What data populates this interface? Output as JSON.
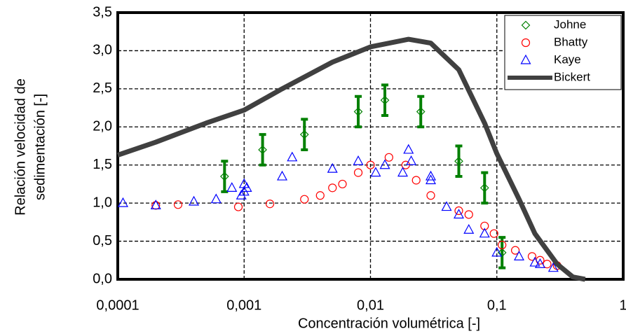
{
  "chart_data": {
    "type": "scatter",
    "xlabel": "Concentración volumétrica [-]",
    "ylabel": [
      "Relación velocidad de",
      "sedimentación [-]"
    ],
    "xscale": "log",
    "xlim": [
      0.0001,
      1
    ],
    "ylim": [
      0,
      3.5
    ],
    "xticks": [
      {
        "value": 0.0001,
        "label": "0,0001"
      },
      {
        "value": 0.001,
        "label": "0,001"
      },
      {
        "value": 0.01,
        "label": "0,01"
      },
      {
        "value": 0.1,
        "label": "0,1"
      },
      1
    ],
    "yticks": [
      {
        "value": 0,
        "label": "0,0"
      },
      {
        "value": 0.5,
        "label": "0,5"
      },
      {
        "value": 1,
        "label": "1,0"
      },
      {
        "value": 1.5,
        "label": "1,5"
      },
      {
        "value": 2,
        "label": "2,0"
      },
      {
        "value": 2.5,
        "label": "2,5"
      },
      {
        "value": 3,
        "label": "3,0"
      },
      {
        "value": 3.5,
        "label": "3,5"
      }
    ],
    "grid": true,
    "legend": "upper right",
    "series": [
      {
        "name": "Johne",
        "color": "#008000",
        "marker": "diamond",
        "x": [
          0.0007,
          0.0014,
          0.003,
          0.008,
          0.013,
          0.025,
          0.05,
          0.08,
          0.11
        ],
        "values": [
          1.35,
          1.7,
          1.9,
          2.2,
          2.35,
          2.2,
          1.55,
          1.2,
          0.35
        ],
        "errors": [
          0.2,
          0.2,
          0.2,
          0.2,
          0.2,
          0.2,
          0.2,
          0.2,
          0.2
        ]
      },
      {
        "name": "Bhatty",
        "color": "#ff0000",
        "marker": "circle",
        "x": [
          0.0002,
          0.0003,
          0.0009,
          0.0016,
          0.003,
          0.004,
          0.005,
          0.006,
          0.008,
          0.01,
          0.014,
          0.019,
          0.023,
          0.03,
          0.05,
          0.06,
          0.08,
          0.095,
          0.11,
          0.14,
          0.19,
          0.22,
          0.25,
          0.3
        ],
        "values": [
          0.97,
          0.98,
          0.95,
          0.99,
          1.05,
          1.1,
          1.2,
          1.25,
          1.4,
          1.5,
          1.6,
          1.5,
          1.3,
          1.1,
          0.9,
          0.85,
          0.7,
          0.6,
          0.45,
          0.38,
          0.3,
          0.25,
          0.2,
          0.18
        ]
      },
      {
        "name": "Kaye",
        "color": "#0000ff",
        "marker": "triangle",
        "x": [
          0.00011,
          0.0002,
          0.0004,
          0.0006,
          0.0008,
          0.00095,
          0.001,
          0.001,
          0.00105,
          0.002,
          0.0024,
          0.005,
          0.008,
          0.011,
          0.013,
          0.018,
          0.02,
          0.021,
          0.03,
          0.03,
          0.04,
          0.05,
          0.06,
          0.08,
          0.1,
          0.15,
          0.2,
          0.22,
          0.28
        ],
        "values": [
          1.0,
          0.97,
          1.02,
          1.05,
          1.2,
          1.1,
          1.15,
          1.25,
          1.2,
          1.35,
          1.6,
          1.45,
          1.55,
          1.4,
          1.5,
          1.4,
          1.7,
          1.55,
          1.3,
          1.35,
          0.95,
          0.85,
          0.65,
          0.6,
          0.35,
          0.3,
          0.22,
          0.2,
          0.15
        ]
      },
      {
        "name": "Bickert",
        "color": "#404040",
        "marker": "line",
        "x": [
          0.0001,
          0.0002,
          0.0005,
          0.001,
          0.002,
          0.005,
          0.01,
          0.02,
          0.03,
          0.05,
          0.08,
          0.1,
          0.15,
          0.2,
          0.3,
          0.4,
          0.5
        ],
        "values": [
          1.63,
          1.8,
          2.05,
          2.22,
          2.5,
          2.85,
          3.05,
          3.15,
          3.1,
          2.75,
          2.05,
          1.65,
          1.05,
          0.6,
          0.2,
          0.03,
          0.0
        ]
      }
    ]
  }
}
